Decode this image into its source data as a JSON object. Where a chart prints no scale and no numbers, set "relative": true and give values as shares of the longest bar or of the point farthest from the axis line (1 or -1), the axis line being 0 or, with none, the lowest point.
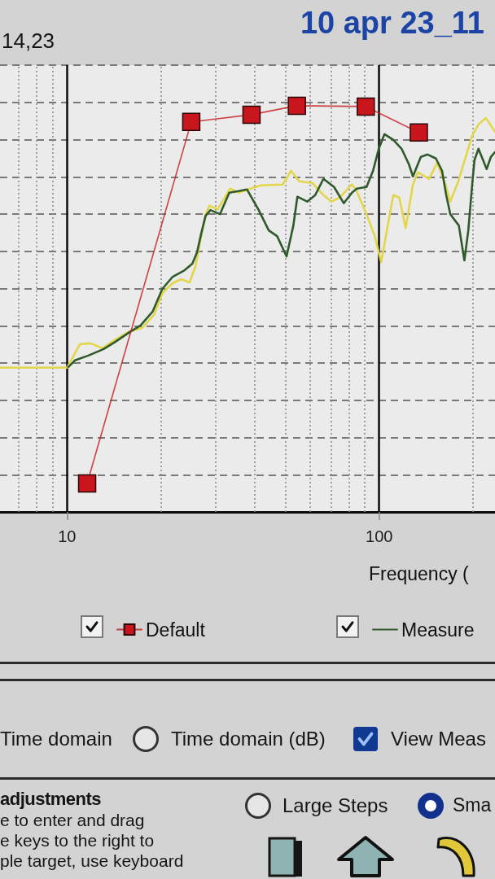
{
  "chart_data": {
    "type": "line",
    "title": "10 apr 23_11",
    "xlabel": "Frequency (",
    "log": "x",
    "relative": true,
    "xlim": [
      6.1,
      235
    ],
    "xticks": [
      10,
      100
    ],
    "grid": true,
    "legend": "bottom",
    "annotations": [
      "14,23",
      "Time domain",
      "Time domain (dB)",
      "View Meas",
      "adjustments",
      "e to enter and drag",
      "e keys to the right to",
      "ple target, use keyboard",
      "Large Steps",
      "Sma"
    ],
    "series": [
      {
        "name": "Default",
        "color": "#c8161c",
        "marker": "square",
        "x": [
          11.6,
          25,
          39,
          54.5,
          90.6,
          134
        ],
        "values": [
          0.07,
          0.96,
          0.978,
          1,
          0.998,
          0.934
        ]
      },
      {
        "name": "Measure",
        "color": "#2f5a2c",
        "x": [
          10.1,
          10.6,
          11.7,
          13.1,
          14.3,
          15.9,
          17.2,
          18.8,
          20.2,
          21.8,
          23.8,
          25.2,
          26.1,
          26.9,
          27.8,
          28.8,
          30.9,
          33.1,
          35.5,
          37.7,
          41,
          44.3,
          47.1,
          50.5,
          53.1,
          54.7,
          58.8,
          62.4,
          66.3,
          71.7,
          77,
          81.8,
          84.8,
          91.1,
          95.6,
          99.7,
          104,
          111,
          118,
          124.5,
          128.3,
          136,
          143,
          152,
          159,
          164,
          169,
          180,
          187.5,
          193,
          199,
          202,
          208,
          221,
          228,
          235
        ],
        "values": [
          0.357,
          0.373,
          0.385,
          0.401,
          0.419,
          0.443,
          0.459,
          0.493,
          0.549,
          0.579,
          0.595,
          0.611,
          0.639,
          0.685,
          0.729,
          0.743,
          0.733,
          0.786,
          0.79,
          0.794,
          0.745,
          0.693,
          0.679,
          0.629,
          0.705,
          0.776,
          0.764,
          0.78,
          0.82,
          0.8,
          0.76,
          0.786,
          0.796,
          0.8,
          0.84,
          0.894,
          0.93,
          0.916,
          0.894,
          0.856,
          0.826,
          0.874,
          0.88,
          0.87,
          0.84,
          0.78,
          0.733,
          0.705,
          0.619,
          0.693,
          0.814,
          0.866,
          0.894,
          0.844,
          0.874,
          0.886
        ]
      },
      {
        "color": "#e3d64a",
        "x": [
          6.1,
          10,
          10.4,
          11,
          11.9,
          13,
          14.2,
          15.9,
          17.4,
          19,
          20.2,
          21.8,
          23.2,
          24.7,
          25.8,
          26.6,
          27.8,
          28.6,
          30.4,
          33.3,
          35.5,
          40.1,
          41.8,
          49.1,
          52.2,
          55.4,
          61,
          66.3,
          70.4,
          74.8,
          81.8,
          84.3,
          91.1,
          96.8,
          101.5,
          107,
          111,
          116,
          121.6,
          128.3,
          133,
          144.6,
          153.5,
          163,
          169,
          179.3,
          198.5,
          208,
          219.6,
          235
        ],
        "values": [
          0.355,
          0.355,
          0.379,
          0.413,
          0.415,
          0.403,
          0.423,
          0.445,
          0.453,
          0.485,
          0.539,
          0.563,
          0.573,
          0.565,
          0.605,
          0.659,
          0.733,
          0.754,
          0.745,
          0.796,
          0.786,
          0.8,
          0.804,
          0.806,
          0.84,
          0.814,
          0.81,
          0.78,
          0.764,
          0.774,
          0.806,
          0.794,
          0.733,
          0.679,
          0.615,
          0.713,
          0.78,
          0.774,
          0.699,
          0.806,
          0.836,
          0.82,
          0.86,
          0.806,
          0.764,
          0.814,
          0.926,
          0.954,
          0.97,
          0.936
        ]
      }
    ]
  }
}
